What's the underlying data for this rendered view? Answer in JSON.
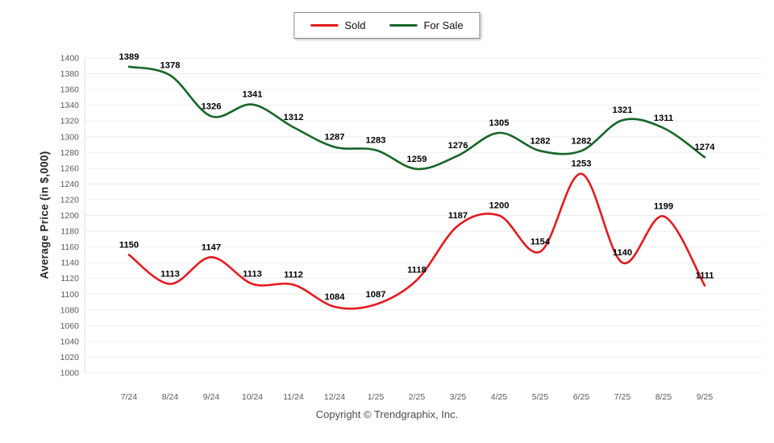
{
  "footer": "Copyright © Trendgraphix, Inc.",
  "chart_data": {
    "type": "line",
    "title": "",
    "xlabel": "",
    "ylabel": "Average Price (in $,000)",
    "categories": [
      "7/24",
      "8/24",
      "9/24",
      "10/24",
      "11/24",
      "12/24",
      "1/25",
      "2/25",
      "3/25",
      "4/25",
      "5/25",
      "6/25",
      "7/25",
      "8/25",
      "9/25"
    ],
    "series": [
      {
        "name": "Sold",
        "color": "#e31a21",
        "values": [
          1150,
          1113,
          1147,
          1113,
          1112,
          1084,
          1087,
          1118,
          1187,
          1200,
          1154,
          1253,
          1140,
          1199,
          1111
        ]
      },
      {
        "name": "For Sale",
        "color": "#17652a",
        "values": [
          1389,
          1378,
          1326,
          1341,
          1312,
          1287,
          1283,
          1259,
          1276,
          1305,
          1282,
          1282,
          1321,
          1311,
          1274
        ]
      }
    ],
    "ylim": [
      1000,
      1400
    ],
    "ytick_step": 20,
    "grid": true,
    "smooth": true,
    "data_labels": true,
    "legend_position": "top-center"
  },
  "colors": {
    "grid": "#ededed",
    "axis_line": "#dcdcdc",
    "tick_text": "#595959",
    "data_label_text": "#000000",
    "footer_text": "#4d4d4d"
  }
}
